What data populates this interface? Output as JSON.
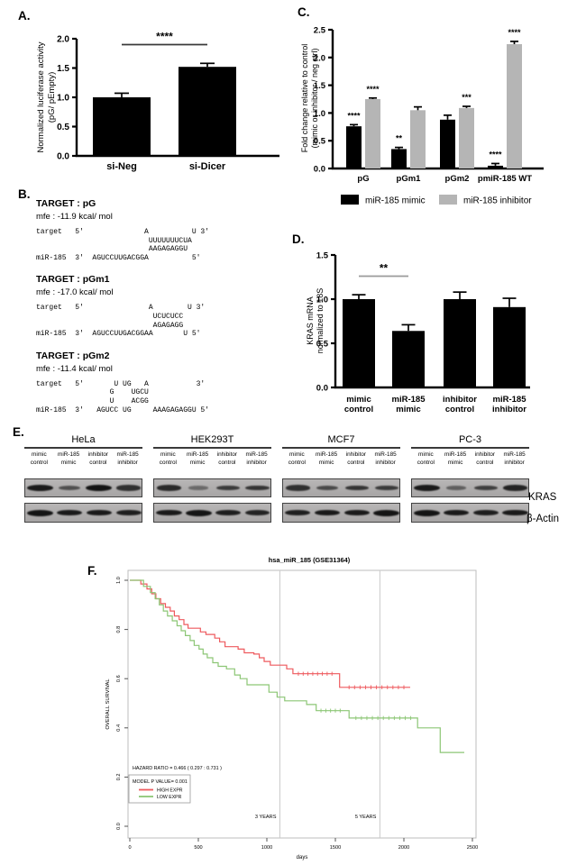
{
  "panelA": {
    "label": "A.",
    "chart_data": {
      "type": "bar",
      "categories": [
        "si-Neg",
        "si-Dicer"
      ],
      "values": [
        1.0,
        1.52
      ],
      "errors": [
        0.07,
        0.06
      ],
      "bar_color": "#000000",
      "ylabel": [
        "Normalized luciferase activity",
        "(pG/ pEmpty)"
      ],
      "ylim": [
        0,
        2.0
      ],
      "yticks": [
        "0.0",
        "0.5",
        "1.0",
        "1.5",
        "2.0"
      ],
      "sig_bracket": {
        "from": 0,
        "to": 1,
        "label": "****",
        "y": 1.9
      }
    }
  },
  "panelB": {
    "label": "B.",
    "targets": [
      {
        "title": "TARGET : pG",
        "mfe": "mfe : -11.9 kcal/ mol",
        "alignment": [
          "target   5'              A          U 3'",
          "                          UUUUUUUCUA",
          "                          AAGAGAGGU",
          "miR-185  3'  AGUCCUUGACGGA          5'"
        ]
      },
      {
        "title": "TARGET : pGm1",
        "mfe": "mfe : -17.0 kcal/ mol",
        "alignment": [
          "target   5'               A        U 3'",
          "                           UCUCUCC",
          "                           AGAGAGG",
          "miR-185  3'  AGUCCUUGACGGAA       U 5'"
        ]
      },
      {
        "title": "TARGET : pGm2",
        "mfe": "mfe : -11.4 kcal/ mol",
        "alignment": [
          "target   5'       U UG   A           3'",
          "                 G    UGCU",
          "                 U    ACGG",
          "miR-185  3'   AGUCC UG     AAAGAGAGGU 5'"
        ]
      }
    ]
  },
  "panelC": {
    "label": "C.",
    "chart_data": {
      "type": "bar",
      "categories": [
        "pG",
        "pGm1",
        "pGm2",
        "pmiR-185 WT"
      ],
      "series": [
        {
          "name": "miR-185 mimic",
          "color": "#000000",
          "values": [
            0.76,
            0.35,
            0.88,
            0.05
          ],
          "errors": [
            0.03,
            0.03,
            0.08,
            0.04
          ],
          "sig": [
            "****",
            "**",
            "",
            "****"
          ]
        },
        {
          "name": "miR-185 inhibitor",
          "color": "#b5b5b5",
          "values": [
            1.25,
            1.05,
            1.09,
            2.24
          ],
          "errors": [
            0.02,
            0.06,
            0.03,
            0.05
          ],
          "sig": [
            "****",
            "",
            "***",
            "****"
          ]
        }
      ],
      "ylabel": [
        "Fold change relative to control",
        "(mimic or inhibitor / neg ctrl)"
      ],
      "ylim": [
        0,
        2.5
      ],
      "yticks": [
        "0.0",
        "0.5",
        "1.0",
        "1.5",
        "2.0",
        "2.5"
      ],
      "legend_position": "bottom"
    }
  },
  "panelD": {
    "label": "D.",
    "chart_data": {
      "type": "bar",
      "categories": [
        [
          "mimic",
          "control"
        ],
        [
          "miR-185",
          "mimic"
        ],
        [
          "inhibitor",
          "control"
        ],
        [
          "miR-185",
          "inhibitor"
        ]
      ],
      "values": [
        1.0,
        0.64,
        1.0,
        0.91
      ],
      "errors": [
        0.05,
        0.07,
        0.08,
        0.1
      ],
      "bar_color": "#000000",
      "ylabel": [
        "KRAS mRNA",
        "normalized to 18S"
      ],
      "ylim": [
        0,
        1.5
      ],
      "yticks": [
        "0.0",
        "0.5",
        "1.0",
        "1.5"
      ],
      "sig_bracket": {
        "from": 0,
        "to": 1,
        "label": "**",
        "y": 1.26
      }
    }
  },
  "panelE": {
    "label": "E.",
    "cell_lines": [
      "HeLa",
      "HEK293T",
      "MCF7",
      "PC-3"
    ],
    "lane_labels": [
      [
        "mimic",
        "control"
      ],
      [
        "miR-185",
        "mimic"
      ],
      [
        "inhibitor",
        "control"
      ],
      [
        "miR-185",
        "inhibitor"
      ]
    ],
    "row_labels": [
      "KRAS",
      "β-Actin"
    ],
    "band_intensities": {
      "HeLa": {
        "KRAS": [
          0.95,
          0.45,
          1.0,
          0.75
        ],
        "actin": [
          1.0,
          0.95,
          0.95,
          0.9
        ]
      },
      "HEK293T": {
        "KRAS": [
          0.8,
          0.2,
          0.65,
          0.7
        ],
        "actin": [
          0.95,
          1.0,
          0.9,
          0.85
        ]
      },
      "MCF7": {
        "KRAS": [
          0.75,
          0.5,
          0.7,
          0.65
        ],
        "actin": [
          0.9,
          0.95,
          0.95,
          1.0
        ]
      },
      "PC-3": {
        "KRAS": [
          0.95,
          0.3,
          0.6,
          0.85
        ],
        "actin": [
          1.0,
          0.95,
          0.9,
          0.95
        ]
      }
    }
  },
  "panelF": {
    "label": "F.",
    "chart_data": {
      "type": "line",
      "title": "hsa_miR_185 (GSE31364)",
      "xlabel": "days",
      "ylabel": "OVERALL SURVIVAL",
      "xlim": [
        0,
        2500
      ],
      "xticks": [
        "0",
        "500",
        "1000",
        "1500",
        "2000",
        "2500"
      ],
      "ylim": [
        0,
        1
      ],
      "yticks": [
        "0.0",
        "0.2",
        "0.4",
        "0.6",
        "0.8",
        "1.0"
      ],
      "vlines": [
        {
          "x": 1095,
          "label": "3 YEARS"
        },
        {
          "x": 1825,
          "label": "5 YEARS"
        }
      ],
      "annotation": "HAZARD RATIO =  0.466  ( 0.297  :  0.731 )",
      "model_p": "MODEL P VALUE=  0.001",
      "series": [
        {
          "name": "HIGH EXPR",
          "color": "#ee5a5e",
          "steps": [
            [
              0,
              1.0
            ],
            [
              80,
              0.985
            ],
            [
              125,
              0.965
            ],
            [
              160,
              0.945
            ],
            [
              190,
              0.925
            ],
            [
              225,
              0.905
            ],
            [
              260,
              0.89
            ],
            [
              295,
              0.875
            ],
            [
              325,
              0.855
            ],
            [
              360,
              0.84
            ],
            [
              395,
              0.82
            ],
            [
              425,
              0.805
            ],
            [
              515,
              0.79
            ],
            [
              555,
              0.78
            ],
            [
              620,
              0.765
            ],
            [
              655,
              0.75
            ],
            [
              695,
              0.73
            ],
            [
              790,
              0.72
            ],
            [
              835,
              0.705
            ],
            [
              905,
              0.7
            ],
            [
              945,
              0.685
            ],
            [
              980,
              0.67
            ],
            [
              1025,
              0.655
            ],
            [
              1145,
              0.64
            ],
            [
              1190,
              0.62
            ],
            [
              1531,
              0.565
            ],
            [
              2046,
              0.565
            ]
          ],
          "censors": [
            [
              1230,
              0.62
            ],
            [
              1265,
              0.62
            ],
            [
              1300,
              0.62
            ],
            [
              1335,
              0.62
            ],
            [
              1370,
              0.62
            ],
            [
              1405,
              0.62
            ],
            [
              1440,
              0.62
            ],
            [
              1475,
              0.62
            ],
            [
              1600,
              0.565
            ],
            [
              1640,
              0.565
            ],
            [
              1680,
              0.565
            ],
            [
              1720,
              0.565
            ],
            [
              1760,
              0.565
            ],
            [
              1800,
              0.565
            ],
            [
              1840,
              0.565
            ],
            [
              1880,
              0.565
            ],
            [
              1920,
              0.565
            ],
            [
              1960,
              0.565
            ],
            [
              2000,
              0.565
            ]
          ]
        },
        {
          "name": "LOW EXPR",
          "color": "#8cc675",
          "steps": [
            [
              0,
              1.0
            ],
            [
              100,
              0.975
            ],
            [
              150,
              0.95
            ],
            [
              185,
              0.925
            ],
            [
              215,
              0.9
            ],
            [
              245,
              0.875
            ],
            [
              275,
              0.855
            ],
            [
              310,
              0.835
            ],
            [
              345,
              0.815
            ],
            [
              375,
              0.795
            ],
            [
              405,
              0.775
            ],
            [
              440,
              0.755
            ],
            [
              470,
              0.735
            ],
            [
              505,
              0.72
            ],
            [
              535,
              0.7
            ],
            [
              565,
              0.685
            ],
            [
              605,
              0.665
            ],
            [
              645,
              0.65
            ],
            [
              705,
              0.64
            ],
            [
              765,
              0.615
            ],
            [
              805,
              0.6
            ],
            [
              855,
              0.575
            ],
            [
              1015,
              0.545
            ],
            [
              1075,
              0.525
            ],
            [
              1130,
              0.51
            ],
            [
              1290,
              0.495
            ],
            [
              1360,
              0.47
            ],
            [
              1600,
              0.44
            ],
            [
              2100,
              0.4
            ],
            [
              2265,
              0.3
            ],
            [
              2441,
              0.3
            ]
          ],
          "censors": [
            [
              1395,
              0.47
            ],
            [
              1430,
              0.47
            ],
            [
              1465,
              0.47
            ],
            [
              1500,
              0.47
            ],
            [
              1535,
              0.47
            ],
            [
              1650,
              0.44
            ],
            [
              1690,
              0.44
            ],
            [
              1730,
              0.44
            ],
            [
              1770,
              0.44
            ],
            [
              1810,
              0.44
            ],
            [
              1850,
              0.44
            ],
            [
              1890,
              0.44
            ],
            [
              1930,
              0.44
            ],
            [
              1970,
              0.44
            ],
            [
              2010,
              0.44
            ],
            [
              2050,
              0.44
            ]
          ]
        }
      ]
    }
  }
}
